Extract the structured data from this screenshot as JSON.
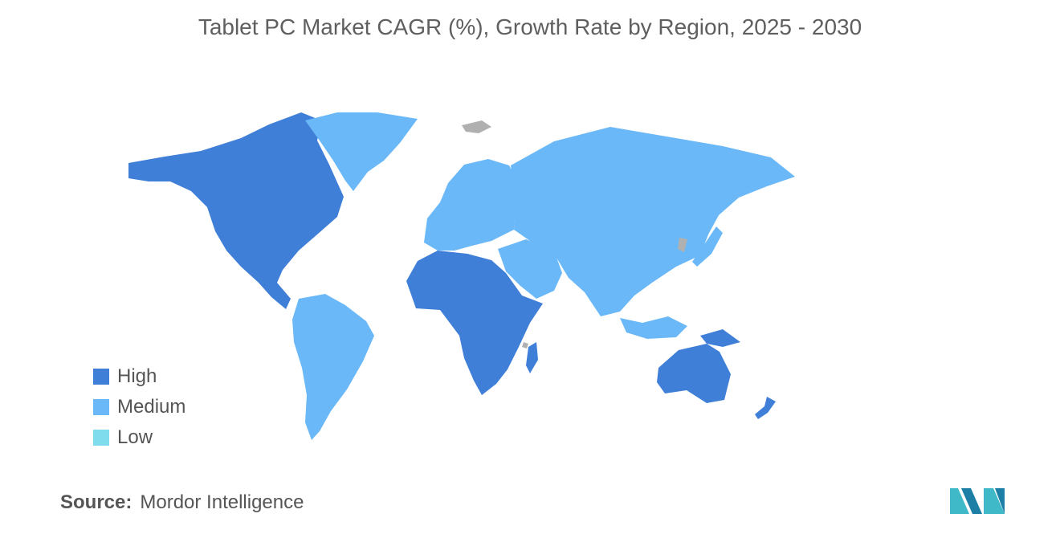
{
  "title": "Tablet PC Market CAGR (%), Growth Rate by Region, 2025 - 2030",
  "legend": [
    {
      "label": "High",
      "color": "#3f7fd8"
    },
    {
      "label": "Medium",
      "color": "#6ab8f7"
    },
    {
      "label": "Low",
      "color": "#7fdcec"
    }
  ],
  "regions": [
    {
      "name": "North America",
      "level": "High"
    },
    {
      "name": "Greenland",
      "level": "Medium"
    },
    {
      "name": "South America",
      "level": "Medium"
    },
    {
      "name": "Europe",
      "level": "Medium"
    },
    {
      "name": "Africa",
      "level": "High"
    },
    {
      "name": "Middle East",
      "level": "Medium"
    },
    {
      "name": "Asia",
      "level": "Medium"
    },
    {
      "name": "Australia and New Zealand",
      "level": "High"
    },
    {
      "name": "No data",
      "level": "None"
    }
  ],
  "colors": {
    "no_data": "#b0b0b0",
    "title": "#5f5f5f",
    "text": "#555555"
  },
  "source": {
    "label": "Source:",
    "value": "Mordor Intelligence"
  },
  "logo_icon": "mordor-intelligence-logo-icon"
}
